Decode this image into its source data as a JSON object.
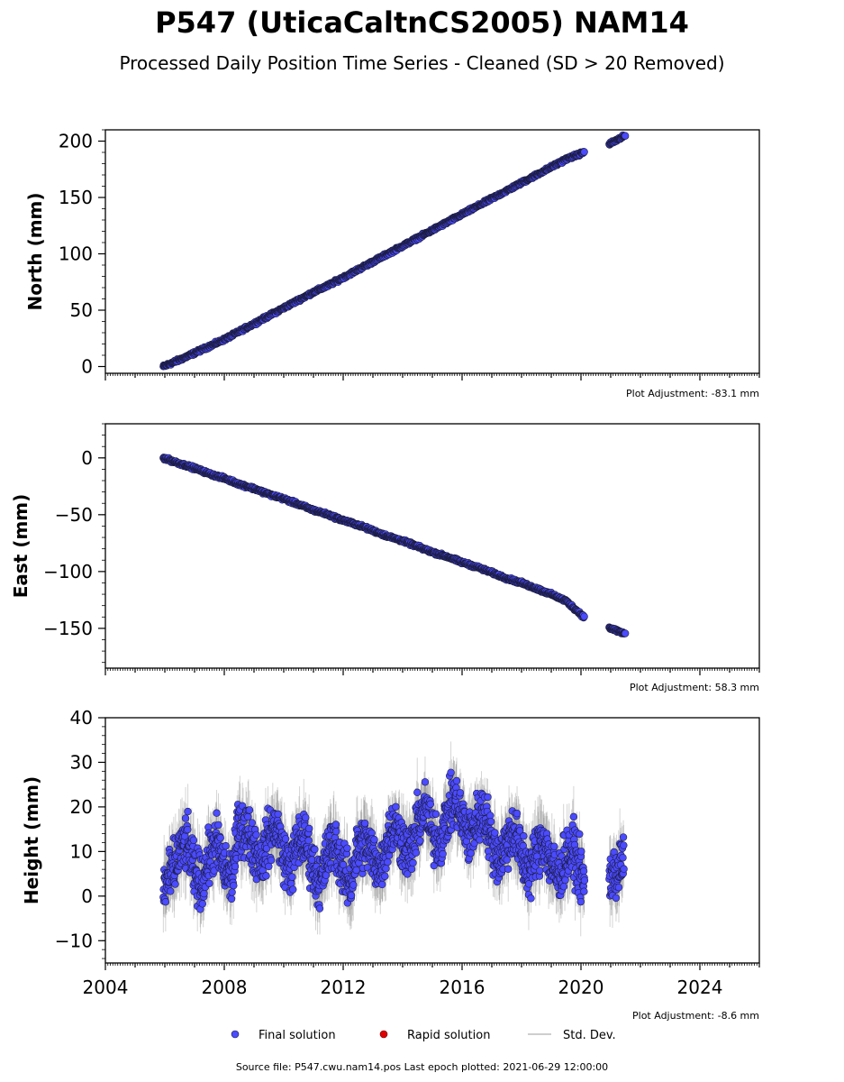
{
  "title": "P547 (UticaCaltnCS2005) NAM14",
  "subtitle": "Processed Daily Position Time Series - Cleaned (SD > 20 Removed)",
  "footer": "Source file: P547.cwu.nam14.pos  Last epoch plotted: 2021-06-29 12:00:00",
  "legend": {
    "final": "Final solution",
    "rapid": "Rapid solution",
    "std": "Std. Dev."
  },
  "colors": {
    "final": "#4b4bff",
    "rapid": "#e00000",
    "std": "#bdbdbd",
    "marker_edge": "#1a1a3a"
  },
  "chart_data": [
    {
      "type": "scatter",
      "ylabel": "North (mm)",
      "adjustment": "Plot Adjustment: -83.1 mm",
      "xlim": [
        2004,
        2026
      ],
      "ylim": [
        -6,
        210
      ],
      "yticks": [
        0,
        50,
        100,
        150,
        200
      ],
      "yticklabels": [
        "0",
        "50",
        "100",
        "150",
        "200"
      ],
      "xticklabels_shown": false,
      "series": [
        {
          "name": "Final solution",
          "x": [
            2005.95,
            2006.5,
            2007.0,
            2007.5,
            2008.0,
            2008.5,
            2009.0,
            2009.5,
            2010.0,
            2010.5,
            2011.0,
            2011.5,
            2012.0,
            2012.5,
            2013.0,
            2013.5,
            2014.0,
            2014.5,
            2015.0,
            2015.5,
            2016.0,
            2016.5,
            2017.0,
            2017.5,
            2018.0,
            2018.5,
            2019.0,
            2019.5,
            2020.1,
            2021.0,
            2021.5
          ],
          "y": [
            0,
            6,
            12,
            18,
            24,
            31,
            38,
            45,
            52,
            59,
            66,
            72,
            79,
            86,
            93,
            100,
            107,
            114,
            121,
            128,
            135,
            142,
            149,
            156,
            163,
            170,
            177,
            184,
            190,
            198,
            205
          ]
        }
      ]
    },
    {
      "type": "scatter",
      "ylabel": "East (mm)",
      "adjustment": "Plot Adjustment: 58.3 mm",
      "xlim": [
        2004,
        2026
      ],
      "ylim": [
        -185,
        30
      ],
      "yticks": [
        0,
        -50,
        -100,
        -150
      ],
      "yticklabels": [
        "0",
        "−50",
        "−100",
        "−150"
      ],
      "xticklabels_shown": false,
      "series": [
        {
          "name": "Final solution",
          "x": [
            2005.95,
            2006.5,
            2007.0,
            2007.5,
            2008.0,
            2008.5,
            2009.0,
            2009.5,
            2010.0,
            2010.5,
            2011.0,
            2011.5,
            2012.0,
            2012.5,
            2013.0,
            2013.5,
            2014.0,
            2014.5,
            2015.0,
            2015.5,
            2016.0,
            2016.5,
            2017.0,
            2017.5,
            2018.0,
            2018.5,
            2019.0,
            2019.5,
            2020.1,
            2021.0,
            2021.5
          ],
          "y": [
            0,
            -5,
            -9,
            -14,
            -18,
            -23,
            -27,
            -32,
            -36,
            -41,
            -46,
            -50,
            -55,
            -59,
            -64,
            -69,
            -73,
            -78,
            -83,
            -87,
            -92,
            -96,
            -101,
            -106,
            -110,
            -115,
            -120,
            -126,
            -140,
            -150,
            -155
          ]
        }
      ]
    },
    {
      "type": "scatter",
      "ylabel": "Height (mm)",
      "adjustment": "Plot Adjustment: -8.6 mm",
      "xlim": [
        2004,
        2026
      ],
      "ylim": [
        -15,
        40
      ],
      "yticks": [
        -10,
        0,
        10,
        20,
        30,
        40
      ],
      "yticklabels": [
        "−10",
        "0",
        "10",
        "20",
        "30",
        "40"
      ],
      "xticks": [
        2004,
        2008,
        2012,
        2016,
        2020,
        2024
      ],
      "xticklabels": [
        "2004",
        "2008",
        "2012",
        "2016",
        "2020",
        "2024"
      ],
      "xticklabels_shown": true,
      "series": [
        {
          "name": "Final solution",
          "x": [
            2005.95,
            2006.25,
            2006.5,
            2006.75,
            2007.0,
            2007.25,
            2007.5,
            2007.75,
            2008.0,
            2008.25,
            2008.5,
            2008.75,
            2009.0,
            2009.25,
            2009.5,
            2009.75,
            2010.0,
            2010.25,
            2010.5,
            2010.75,
            2011.0,
            2011.25,
            2011.5,
            2011.75,
            2012.0,
            2012.25,
            2012.5,
            2012.75,
            2013.0,
            2013.25,
            2013.5,
            2013.75,
            2014.0,
            2014.25,
            2014.5,
            2014.75,
            2015.0,
            2015.25,
            2015.5,
            2015.75,
            2016.0,
            2016.25,
            2016.5,
            2016.75,
            2017.0,
            2017.25,
            2017.5,
            2017.75,
            2018.0,
            2018.25,
            2018.5,
            2018.75,
            2019.0,
            2019.25,
            2019.5,
            2019.75,
            2020.0,
            2020.1,
            2021.0,
            2021.25,
            2021.45
          ],
          "y": [
            2,
            5,
            10,
            12,
            5,
            3,
            9,
            12,
            6,
            4,
            16,
            15,
            11,
            8,
            13,
            16,
            9,
            6,
            13,
            12,
            6,
            3,
            10,
            12,
            5,
            3,
            11,
            12,
            9,
            6,
            13,
            16,
            12,
            9,
            16,
            20,
            14,
            12,
            18,
            22,
            17,
            13,
            17,
            19,
            12,
            8,
            12,
            15,
            9,
            5,
            10,
            13,
            7,
            4,
            9,
            10,
            5,
            3,
            4,
            6,
            8
          ]
        }
      ]
    }
  ]
}
